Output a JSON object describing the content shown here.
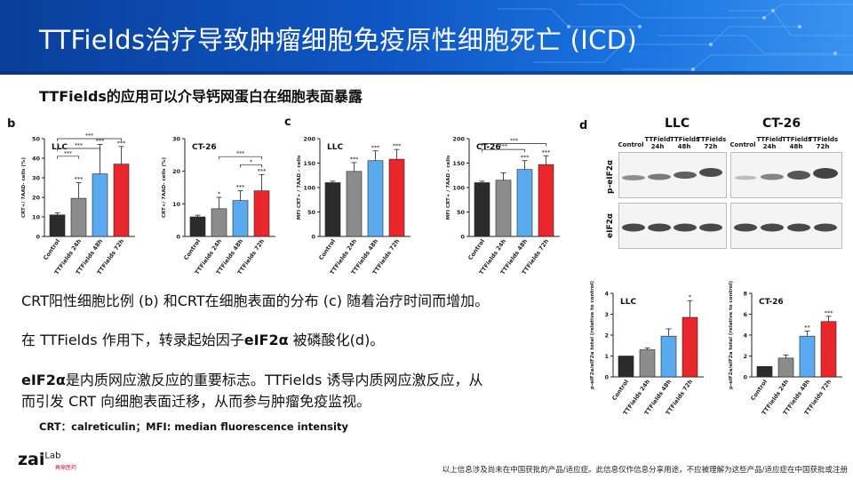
{
  "header": {
    "title": "TTFields治疗导致肿瘤细胞免疫原性细胞死亡 (ICD)",
    "subtitle": "TTFields的应用可以介导钙网蛋白在细胞表面暴露"
  },
  "panels": {
    "b": "b",
    "c": "c",
    "d": "d"
  },
  "body_text": {
    "p1": "CRT阳性细胞比例 (b) 和CRT在细胞表面的分布 (c) 随着治疗时间而增加。",
    "p2_pre": "在 TTFields 作用下，转录起始因子",
    "p2_bold": "eIF2α",
    "p2_post": " 被磷酸化(d)。",
    "p3a_bold": "eIF2α",
    "p3a_rest": "是内质网应激反应的重要标志。TTFields 诱导内质网应激反应，从",
    "p3b": "而引发 CRT 向细胞表面迁移，从而参与肿瘤免疫监视。"
  },
  "footnote": "CRT：calreticulin；MFI: median fluorescence intensity",
  "logo": {
    "main": "zai",
    "lab": "Lab",
    "sub": "再鼎医药"
  },
  "disclaimer": "以上信息涉及尚未在中国获批的产品/适应症。此信息仅作信息分享用途，不应被理解为这些产品/适应症在中国获批或注册",
  "western_blot": {
    "groups": [
      "LLC",
      "CT-26"
    ],
    "lanes": [
      "Control",
      "TTField 24h",
      "TTFields 48h",
      "TTFields 72h"
    ],
    "rows": [
      "p-eIF2α",
      "eIF2α"
    ]
  },
  "colors": {
    "control": "#2b2b2b",
    "h24": "#8c8c8c",
    "h48": "#5aaaf0",
    "h72": "#e8262b"
  },
  "chart_data": [
    {
      "panel": "b",
      "type": "bar",
      "title": "LLC",
      "ylabel": "CRT+/ 7AAD- cells (%)",
      "ylim": [
        0,
        50
      ],
      "ticks": [
        0,
        10,
        20,
        30,
        40,
        50
      ],
      "categories": [
        "Control",
        "TTFields 24h",
        "TTFields 48h",
        "TTFields 72h"
      ],
      "values": [
        11,
        19.5,
        32,
        37
      ],
      "errors": [
        1,
        8,
        15,
        9
      ],
      "stars": [
        "",
        "***",
        "***",
        "***"
      ],
      "brackets": [
        {
          "from": 0,
          "to": 1,
          "y": 41,
          "label": "***"
        },
        {
          "from": 0,
          "to": 2,
          "y": 45,
          "label": "***"
        },
        {
          "from": 0,
          "to": 3,
          "y": 50,
          "label": "***"
        }
      ]
    },
    {
      "panel": "b",
      "type": "bar",
      "title": "CT-26",
      "ylabel": "CRT+/ 7AAD- cells (%)",
      "ylim": [
        0,
        30
      ],
      "ticks": [
        0,
        10,
        20,
        30
      ],
      "categories": [
        "Control",
        "TTFields 24h",
        "TTFields 48h",
        "TTFields 72h"
      ],
      "values": [
        6,
        8.5,
        11,
        14
      ],
      "errors": [
        0.5,
        3.5,
        3,
        5
      ],
      "stars": [
        "",
        "*",
        "***",
        "***"
      ],
      "brackets": [
        {
          "from": 2,
          "to": 3,
          "y": 22,
          "label": "*"
        },
        {
          "from": 1,
          "to": 3,
          "y": 24.5,
          "label": "***"
        }
      ]
    },
    {
      "panel": "c",
      "type": "bar",
      "title": "LLC",
      "ylabel": "MFI CRT+ / 7AAD - cells",
      "ylim": [
        0,
        200
      ],
      "ticks": [
        0,
        50,
        100,
        150,
        200
      ],
      "categories": [
        "Control",
        "TTFields 24h",
        "TTFields 48h",
        "TTFields 72h"
      ],
      "values": [
        110,
        133,
        155,
        158
      ],
      "errors": [
        3,
        18,
        20,
        20
      ],
      "stars": [
        "",
        "***",
        "***",
        "***"
      ],
      "brackets": []
    },
    {
      "panel": "c",
      "type": "bar",
      "title": "CT-26",
      "ylabel": "MFI CRT+ / 7AAD - cells",
      "ylim": [
        0,
        200
      ],
      "ticks": [
        0,
        50,
        100,
        150,
        200
      ],
      "categories": [
        "Control",
        "TTFields 24h",
        "TTFields 48h",
        "TTFields 72h"
      ],
      "values": [
        110,
        115,
        137,
        147
      ],
      "errors": [
        3,
        15,
        18,
        18
      ],
      "stars": [
        "",
        "",
        "***",
        "***"
      ],
      "brackets": [
        {
          "from": 0,
          "to": 2,
          "y": 178,
          "label": "***"
        },
        {
          "from": 0,
          "to": 3,
          "y": 190,
          "label": "***"
        }
      ]
    },
    {
      "panel": "d",
      "type": "bar",
      "title": "LLC",
      "ylabel": "p-eIF2a/eIF2a total (relative to control)",
      "ylim": [
        0,
        4
      ],
      "ticks": [
        0,
        1,
        2,
        3,
        4
      ],
      "categories": [
        "Control",
        "TTFields 24h",
        "TTFields 48h",
        "TTFields 72h"
      ],
      "values": [
        1.0,
        1.3,
        1.95,
        2.85
      ],
      "errors": [
        0,
        0.08,
        0.35,
        0.8
      ],
      "stars": [
        "",
        "",
        "",
        "*"
      ],
      "brackets": []
    },
    {
      "panel": "d",
      "type": "bar",
      "title": "CT-26",
      "ylabel": "p-eIF2a/eIF2a total (relative to control)",
      "ylim": [
        0,
        8
      ],
      "ticks": [
        0,
        2,
        4,
        6,
        8
      ],
      "categories": [
        "Control",
        "TTFields 24h",
        "TTFields 48h",
        "TTFields 72h"
      ],
      "values": [
        1.0,
        1.8,
        3.9,
        5.3
      ],
      "errors": [
        0,
        0.3,
        0.5,
        0.5
      ],
      "stars": [
        "",
        "",
        "**",
        "***"
      ],
      "brackets": []
    }
  ]
}
